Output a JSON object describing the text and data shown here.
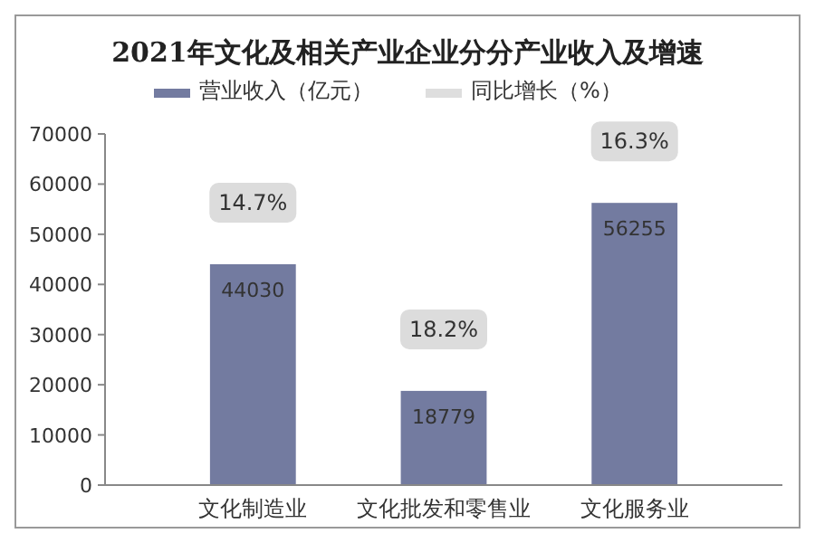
{
  "chart_data": {
    "type": "bar",
    "title": "2021年文化及相关产业企业分分产业收入及增速",
    "categories": [
      "文化制造业",
      "文化批发和零售业",
      "文化服务业"
    ],
    "series": [
      {
        "name": "营业收入（亿元）",
        "color": "#737ba0",
        "values": [
          44030,
          18779,
          56255
        ]
      },
      {
        "name": "同比增长（%）",
        "color": "#dedede",
        "values": [
          null,
          null,
          null
        ]
      }
    ],
    "ylim": [
      0,
      70000
    ],
    "yticks": [
      0,
      10000,
      20000,
      30000,
      40000,
      50000,
      60000,
      70000
    ],
    "data_labels": true,
    "legend": "top",
    "grid": false,
    "annotations": [
      "14.7%",
      "18.2%",
      "16.3%"
    ]
  }
}
